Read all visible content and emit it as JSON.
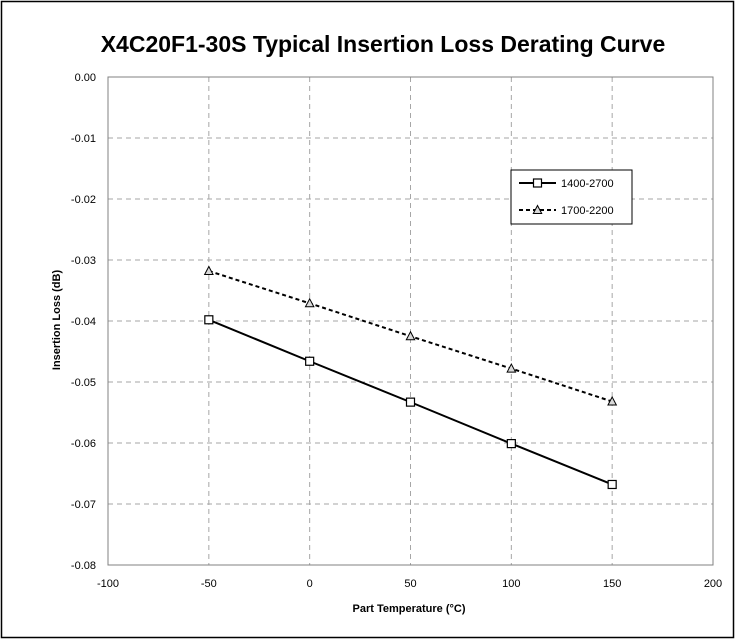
{
  "chart_data": {
    "type": "line",
    "title": "X4C20F1-30S Typical Insertion Loss Derating Curve",
    "xlabel": "Part Temperature (°C)",
    "ylabel": "Insertion Loss (dB)",
    "xlim": [
      -100,
      200
    ],
    "ylim": [
      -0.08,
      0.0
    ],
    "xticks": [
      -100,
      -50,
      0,
      50,
      100,
      150,
      200
    ],
    "yticks": [
      0.0,
      -0.01,
      -0.02,
      -0.03,
      -0.04,
      -0.05,
      -0.06,
      -0.07,
      -0.08
    ],
    "xtick_labels": [
      "-100",
      "-50",
      "0",
      "50",
      "100",
      "150",
      "200"
    ],
    "ytick_labels": [
      "0.00",
      "-0.01",
      "-0.02",
      "-0.03",
      "-0.04",
      "-0.05",
      "-0.06",
      "-0.07",
      "-0.08"
    ],
    "grid": true,
    "legend_position": "top-right",
    "series": [
      {
        "name": "1400-2700",
        "style": "solid",
        "marker": "square",
        "color": "#000000",
        "x": [
          -50,
          0,
          50,
          100,
          150
        ],
        "y": [
          -0.0398,
          -0.0466,
          -0.0533,
          -0.0601,
          -0.0668
        ]
      },
      {
        "name": "1700-2200",
        "style": "dashed",
        "marker": "triangle",
        "color": "#000000",
        "x": [
          -50,
          0,
          50,
          100,
          150
        ],
        "y": [
          -0.0318,
          -0.0371,
          -0.0425,
          -0.0478,
          -0.0532
        ]
      }
    ]
  }
}
